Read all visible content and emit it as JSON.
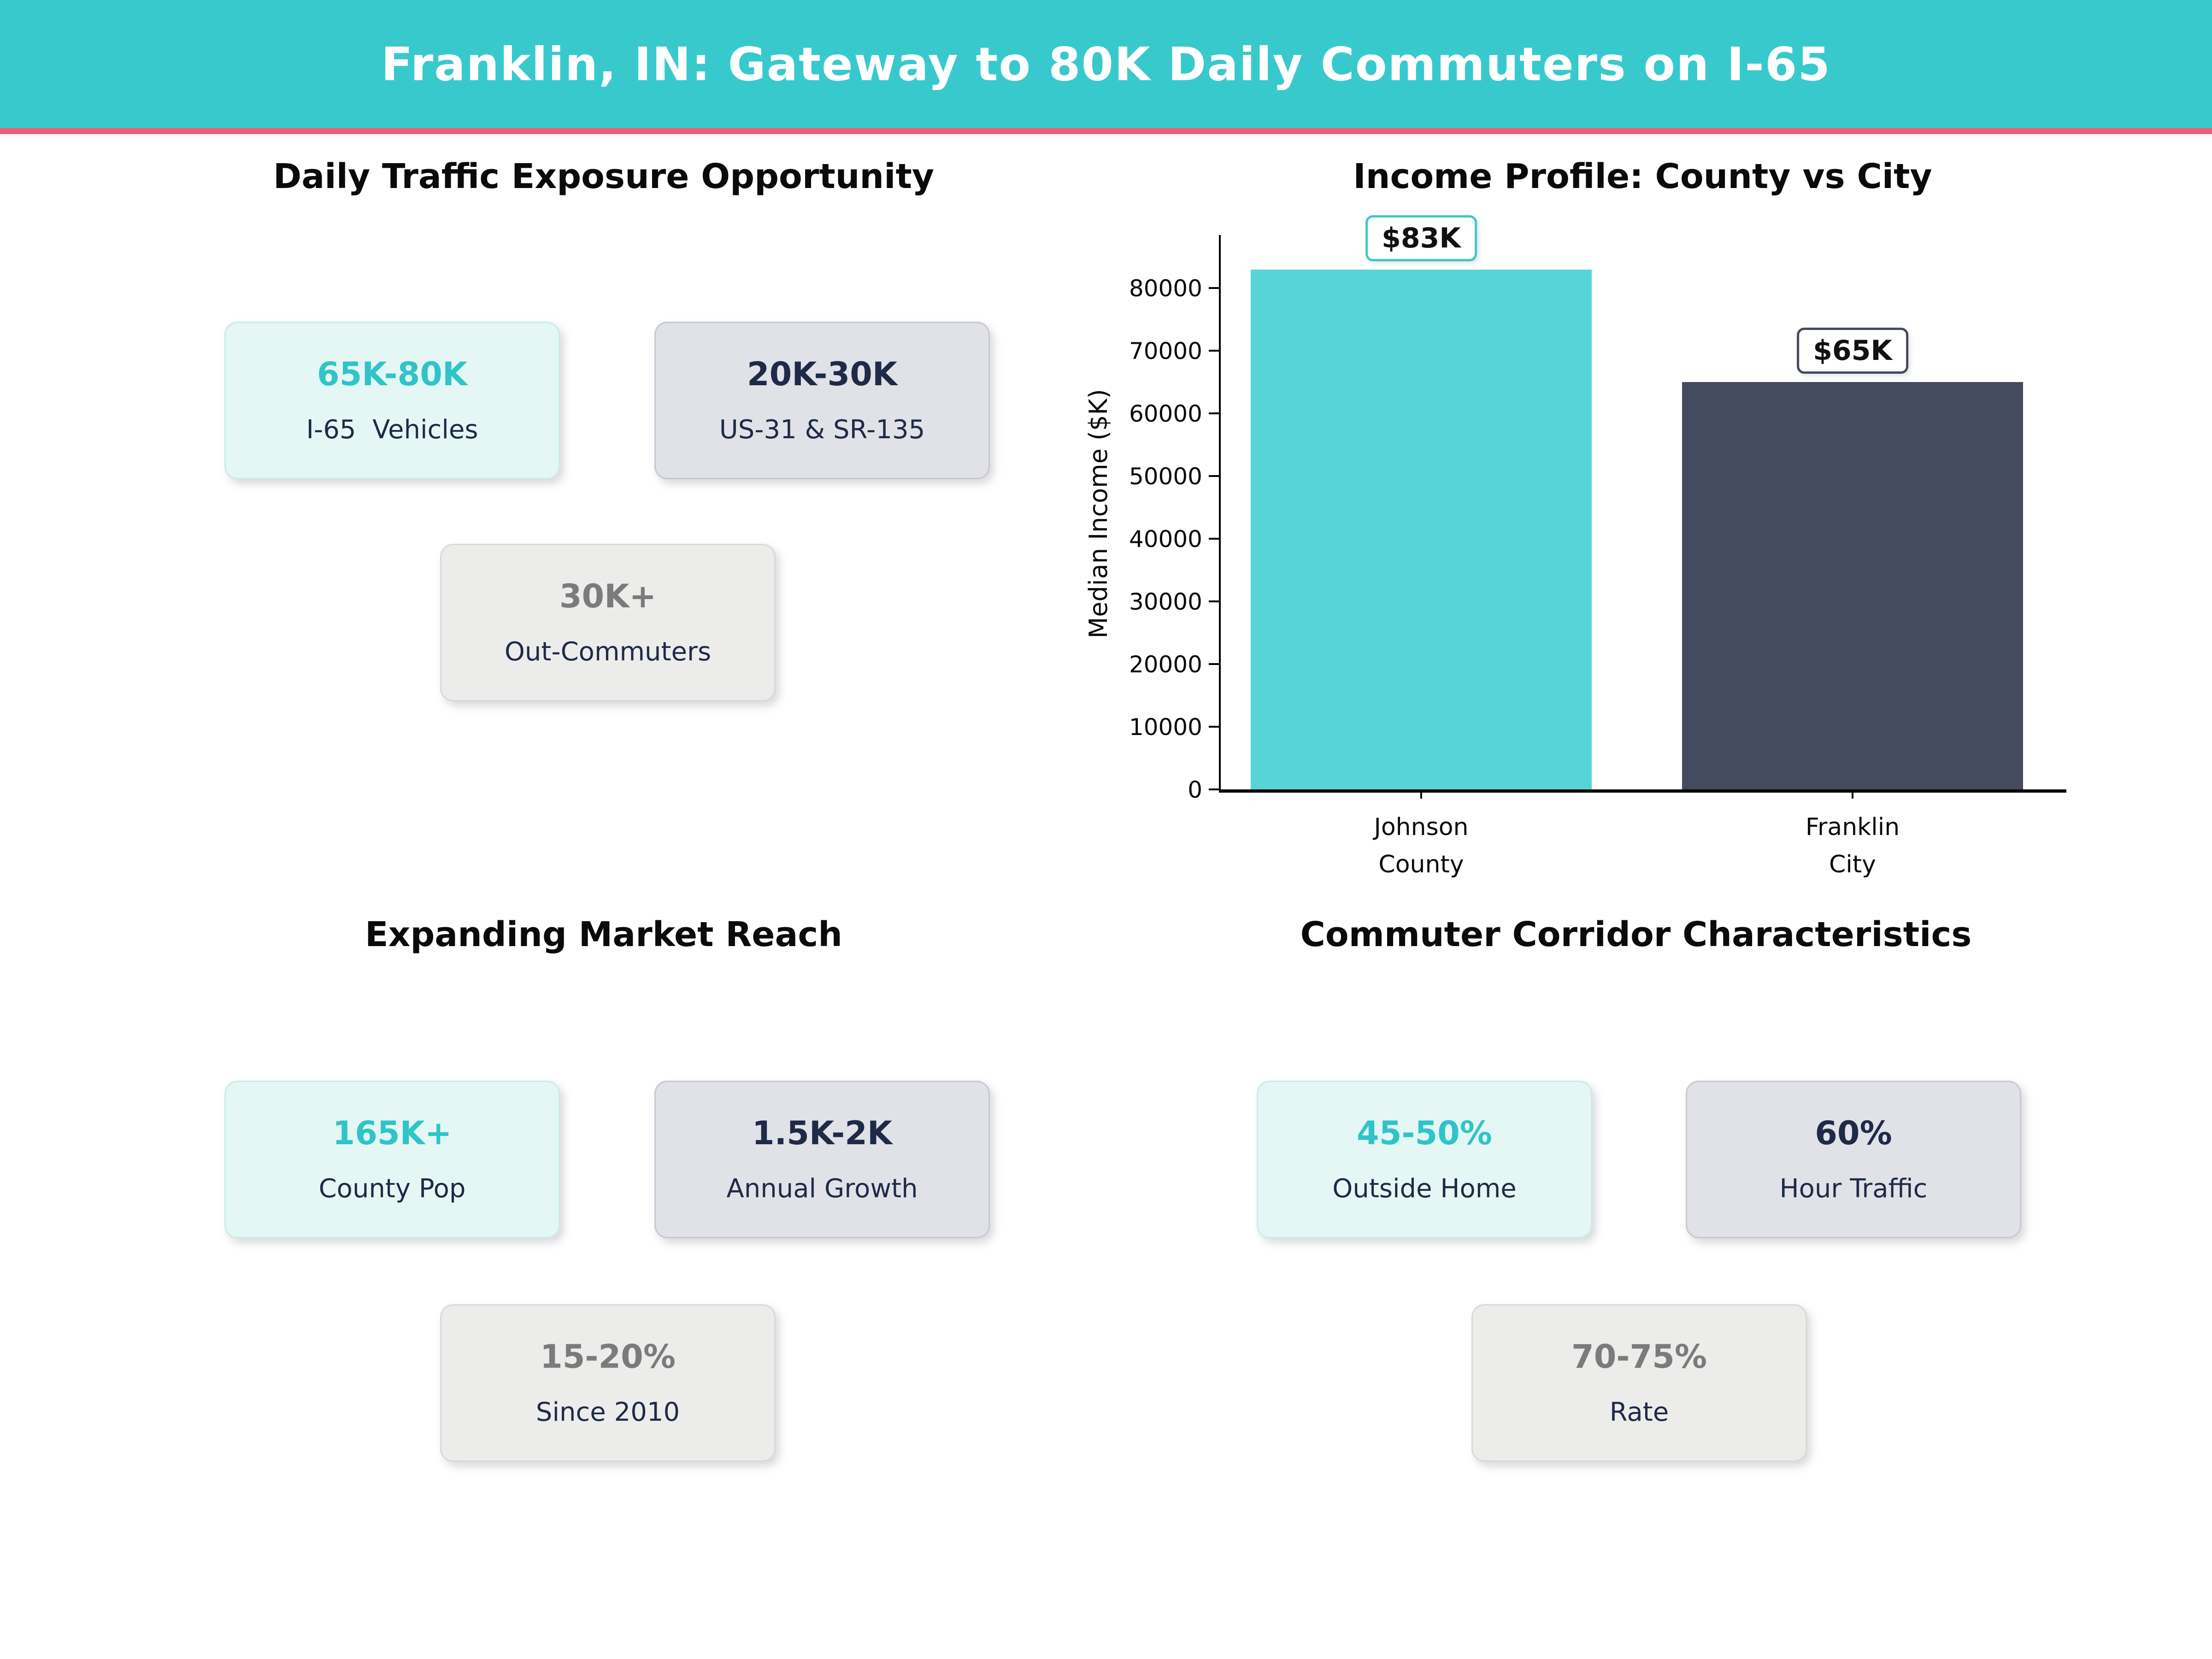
{
  "header": {
    "title": "Franklin, IN: Gateway to 80K Daily Commuters on I-65",
    "bg_color": "#38c9cd",
    "accent_color": "#ed5f74"
  },
  "quadrants": {
    "traffic": {
      "title": "Daily Traffic Exposure Opportunity",
      "cards": [
        {
          "value": "65K-80K",
          "label": "I-65  Vehicles"
        },
        {
          "value": "20K-30K",
          "label": "US-31 & SR-135"
        },
        {
          "value": "30K+",
          "label": "Out-Commuters"
        }
      ]
    },
    "market": {
      "title": "Expanding Market Reach",
      "cards": [
        {
          "value": "165K+",
          "label": "County Pop"
        },
        {
          "value": "1.5K-2K",
          "label": "Annual Growth"
        },
        {
          "value": "15-20%",
          "label": "Since 2010"
        }
      ]
    },
    "commuter": {
      "title": "Commuter Corridor Characteristics",
      "cards": [
        {
          "value": "45-50%",
          "label": "Outside Home"
        },
        {
          "value": "60%",
          "label": "Hour Traffic"
        },
        {
          "value": "70-75%",
          "label": "Rate"
        }
      ]
    }
  },
  "colors": {
    "teal_value": "#2fc4c9",
    "navy_value": "#1f2a48",
    "gray_value": "#7b7b7b"
  },
  "chart_data": {
    "type": "bar",
    "title": "Income Profile: County vs City",
    "categories": [
      "Johnson\nCounty",
      "Franklin\nCity"
    ],
    "values": [
      83000,
      65000
    ],
    "bar_colors": [
      "#57d5d6",
      "#454b5e"
    ],
    "annotations": [
      {
        "text": "$83K",
        "border_color": "#3bc9cd"
      },
      {
        "text": "$65K",
        "border_color": "#434a5f"
      }
    ],
    "xlabel": "",
    "ylabel": "Median Income ($K)",
    "ylim": [
      0,
      89000
    ],
    "yticks": [
      0,
      10000,
      20000,
      30000,
      40000,
      50000,
      60000,
      70000,
      80000
    ],
    "grid": false,
    "legend": "none"
  }
}
